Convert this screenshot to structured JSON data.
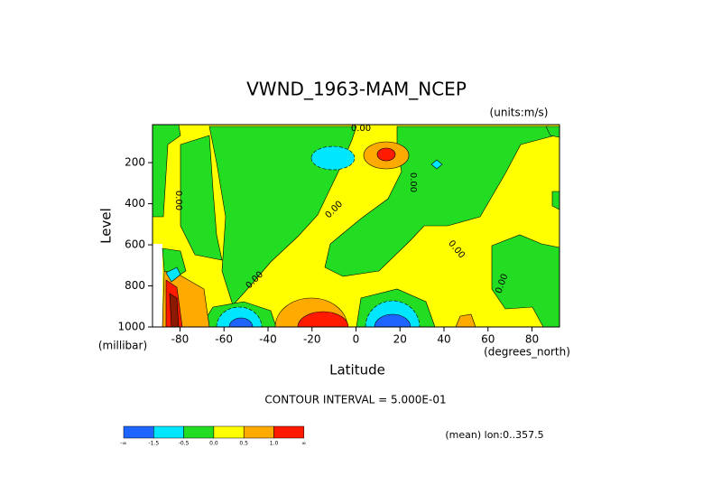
{
  "chart_data": {
    "type": "contour",
    "title": "VWND_1963-MAM_NCEP",
    "units": "(units:m/s)",
    "xlabel": "Latitude",
    "ylabel": "Level",
    "x_units": "(degrees_north)",
    "y_units": "(millibar)",
    "xlim": [
      -92.5,
      92.5
    ],
    "ylim": [
      1000,
      15
    ],
    "xticks": [
      -80,
      -60,
      -40,
      -20,
      0,
      20,
      40,
      60,
      80
    ],
    "yticks": [
      200,
      400,
      600,
      800,
      1000
    ],
    "contour_interval": "CONTOUR INTERVAL = 5.000E-01",
    "mean_note": "(mean) lon:0..357.5",
    "contour_labels": [
      "0.00",
      "0.00",
      "0.00",
      "0.00",
      "0.00",
      "0.00",
      "0.00"
    ],
    "colorbar": {
      "colors": [
        "#1e64ff",
        "#00e6ff",
        "#22dd22",
        "#ffff00",
        "#ffaa00",
        "#ff1a00"
      ],
      "labels": [
        "-∞",
        "-1.5",
        "-0.5",
        "0.0",
        "0.5",
        "1.0",
        "∞"
      ]
    }
  }
}
